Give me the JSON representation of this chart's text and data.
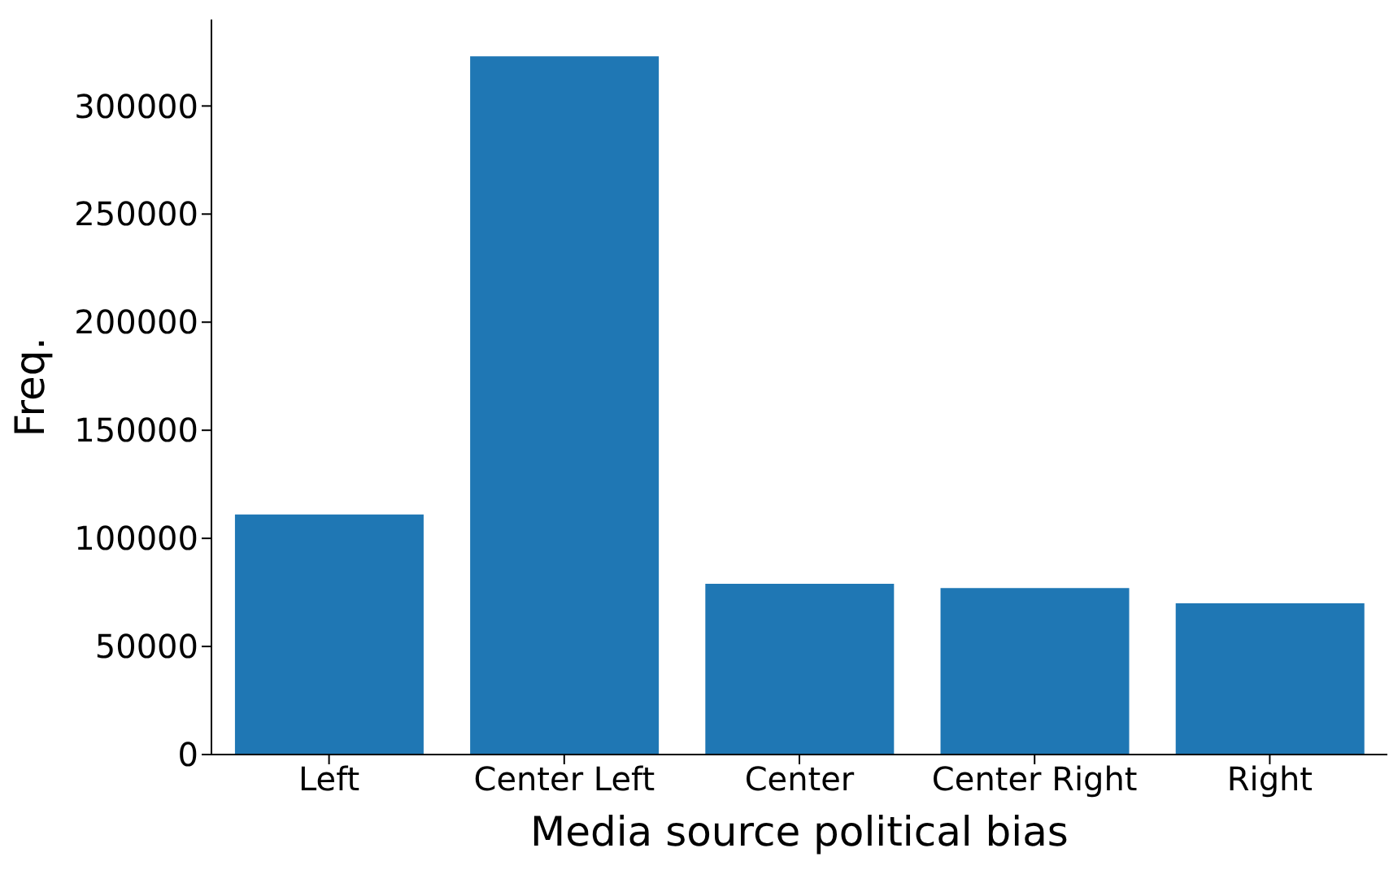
{
  "chart_data": {
    "type": "bar",
    "xlabel": "Media source political bias",
    "ylabel": "Freq.",
    "categories": [
      "Left",
      "Center Left",
      "Center",
      "Center Right",
      "Right"
    ],
    "values": [
      111000,
      323000,
      79000,
      77000,
      70000
    ],
    "color": "#1f77b4",
    "ylim": [
      0,
      340000
    ],
    "yticks": [
      0,
      50000,
      100000,
      150000,
      200000,
      250000,
      300000
    ],
    "grid": false,
    "legend": false
  }
}
